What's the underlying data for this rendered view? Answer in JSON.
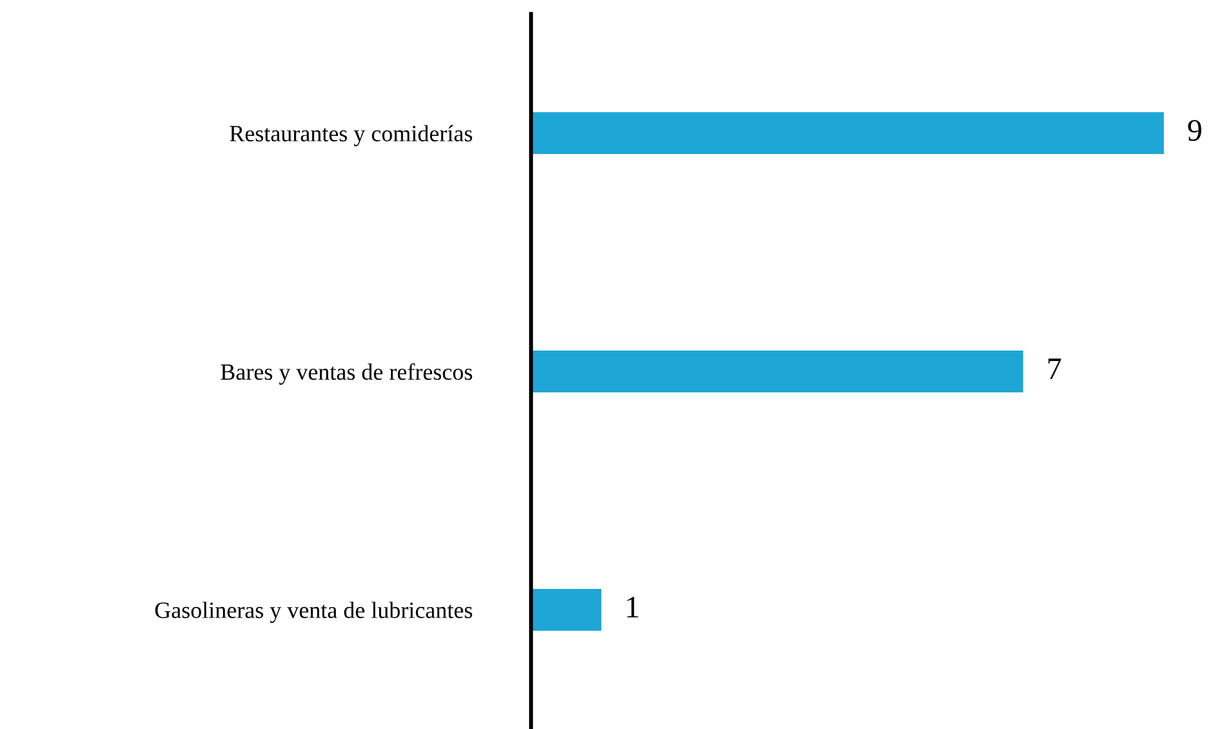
{
  "chart_data": {
    "type": "bar",
    "orientation": "horizontal",
    "categories": [
      "Restaurantes y comiderías",
      "Bares y ventas de refrescos",
      "Gasolineras y venta de lubricantes"
    ],
    "values": [
      9,
      7,
      1
    ],
    "color": "#1ea6d6",
    "data_labels": true,
    "grid": false,
    "legend": false
  }
}
